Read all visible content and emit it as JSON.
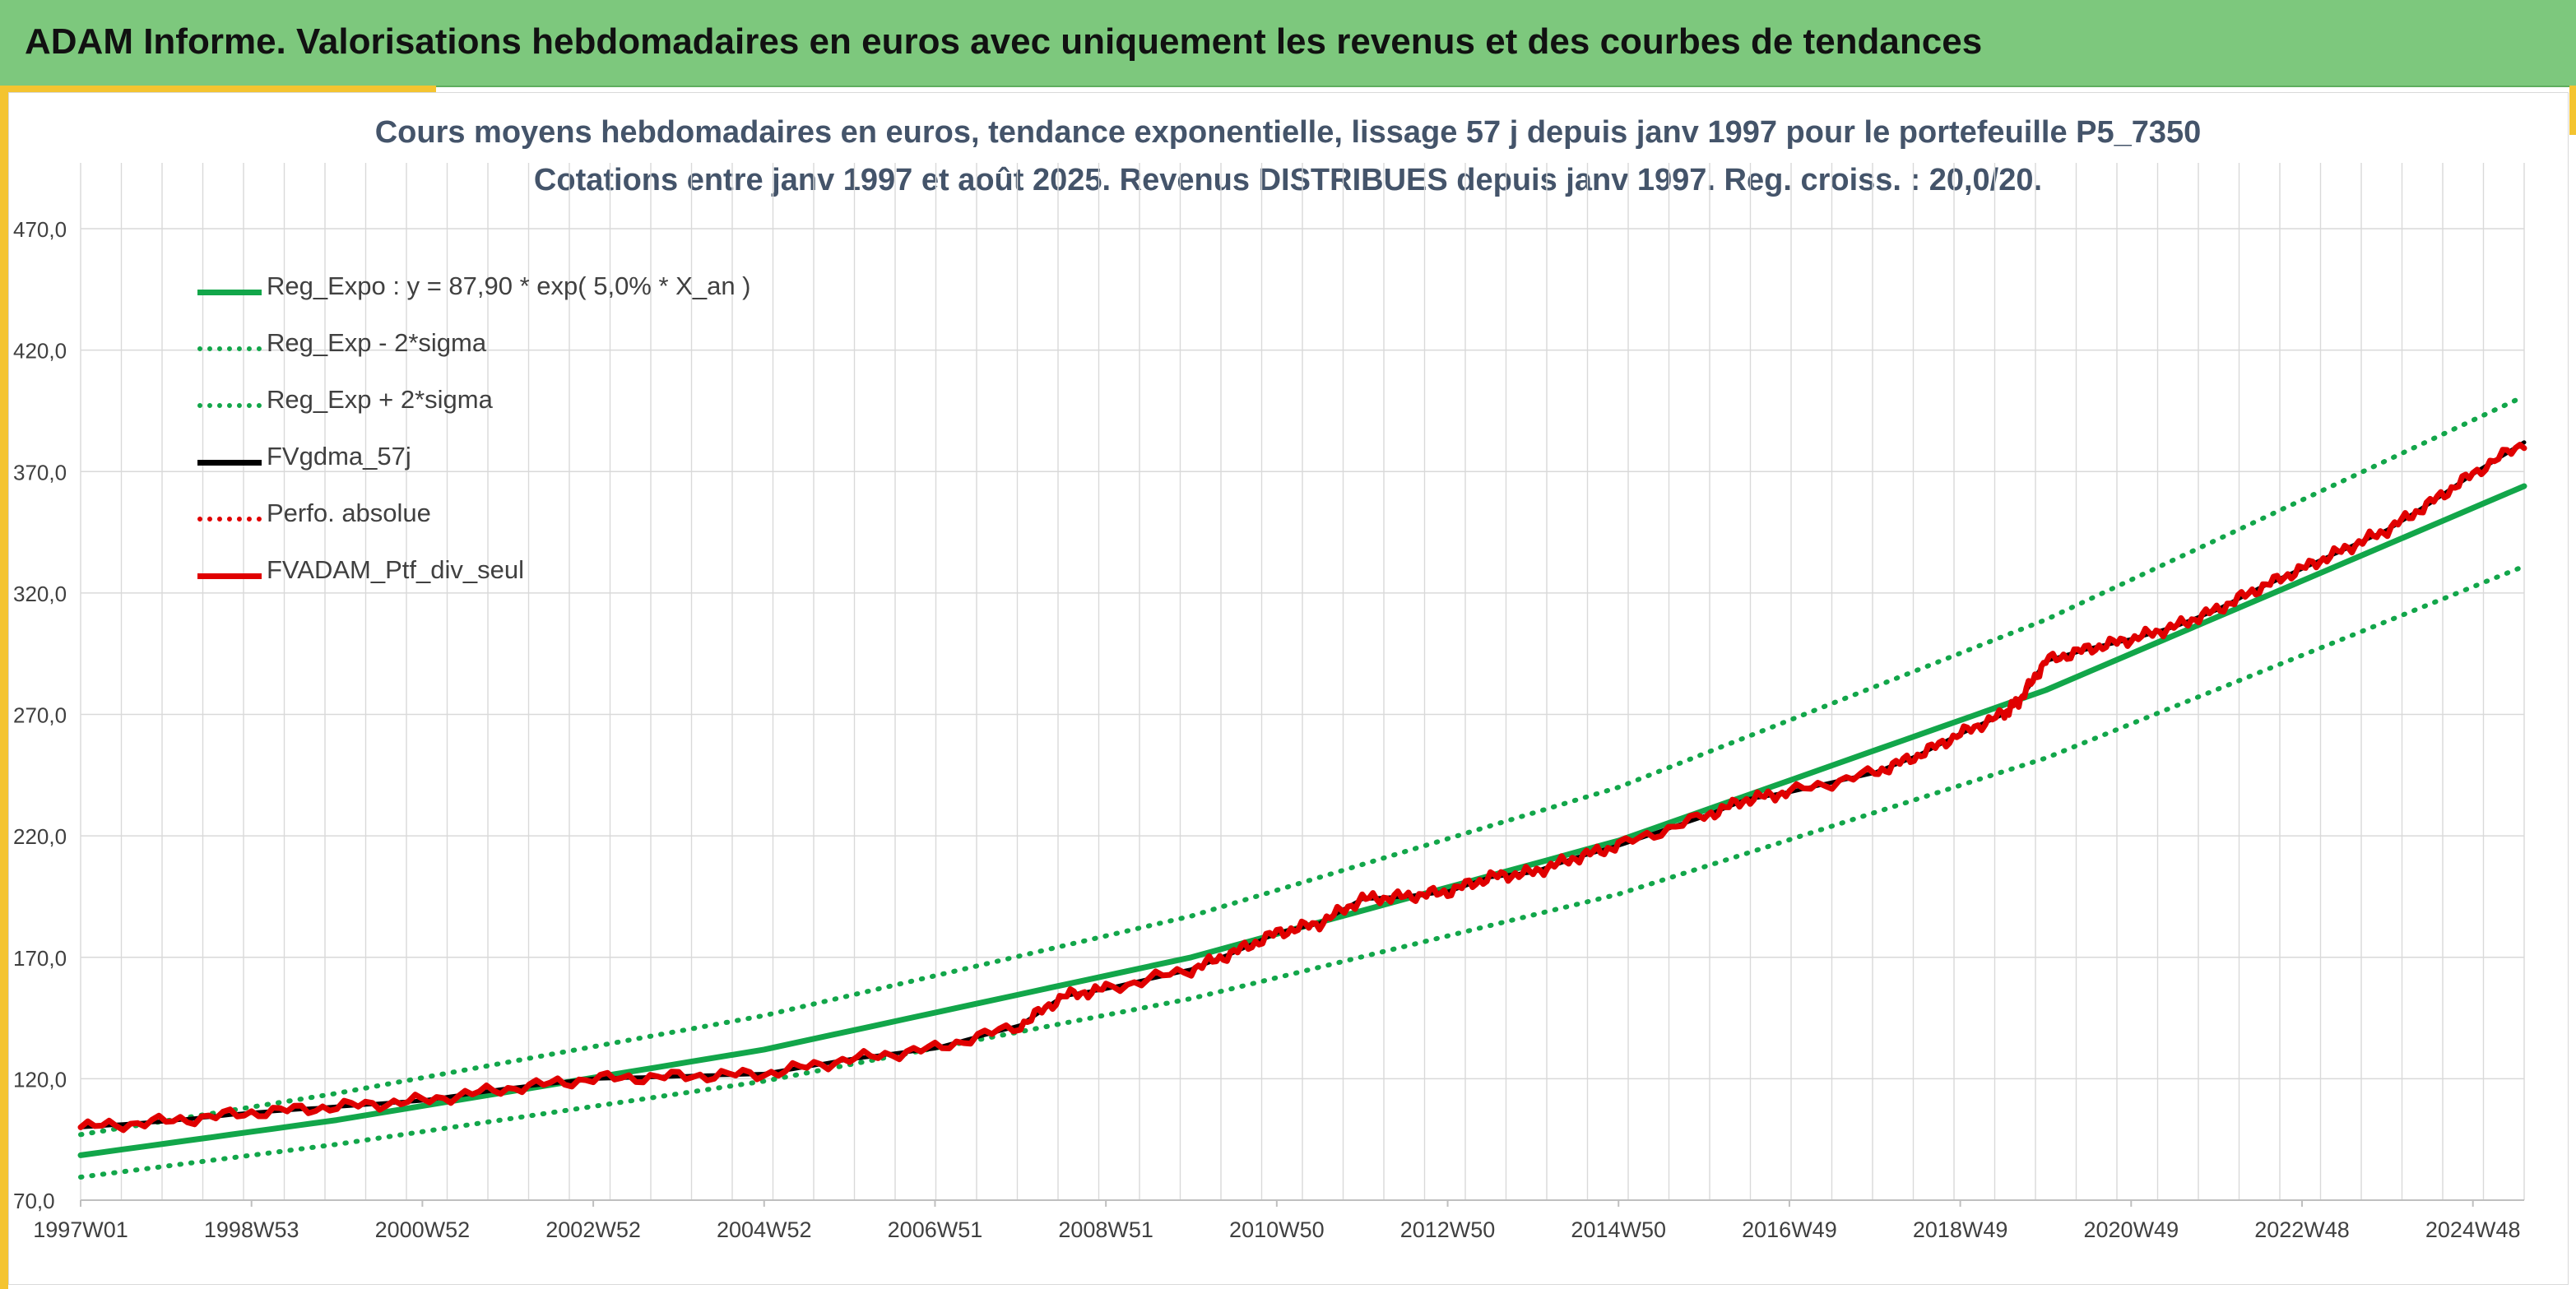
{
  "header": {
    "title": "ADAM Informe. Valorisations hebdomadaires en euros avec uniquement les revenus et des courbes de tendances"
  },
  "colors": {
    "header_bg": "#7dc87d",
    "accent": "#f4c430",
    "trend_green": "#12a64a",
    "fv_black": "#000000",
    "perf_red": "#e00000",
    "grid": "#d9d9d9",
    "axis_text": "#404040",
    "title_text": "#44546a"
  },
  "chart_data": {
    "type": "line",
    "title": "Cours moyens hebdomadaires en euros, tendance exponentielle, lissage 57 j depuis janv 1997 pour le portefeuille P5_7350",
    "subtitle": "Cotations entre janv 1997 et août 2025. Revenus DISTRIBUES depuis janv 1997. Reg. croiss. : 20,0/20.",
    "xlabel": "",
    "ylabel": "",
    "x_start": 1997.0,
    "x_end": 2025.6,
    "ylim": [
      70,
      470
    ],
    "y_ticks": [
      "70,0",
      "120,0",
      "170,0",
      "220,0",
      "270,0",
      "320,0",
      "370,0",
      "420,0",
      "470,0"
    ],
    "x_ticks": [
      "1997W01",
      "1998W53",
      "2000W52",
      "2002W52",
      "2004W52",
      "2006W51",
      "2008W51",
      "2010W50",
      "2012W50",
      "2014W50",
      "2016W49",
      "2018W49",
      "2020W49",
      "2022W48",
      "2024W48"
    ],
    "grid": true,
    "legend_position": "top-left",
    "series": [
      {
        "name": "Reg_Expo : y = 87,90 * exp( 5,0% *  X_an )",
        "color": "#12a64a",
        "style": "solid",
        "x": [
          1997.0,
          2000.0,
          2005.0,
          2010.0,
          2015.0,
          2020.0,
          2025.6
        ],
        "values": [
          88.5,
          103.0,
          132.0,
          170.0,
          218.0,
          280.0,
          364.0
        ]
      },
      {
        "name": "Reg_Exp - 2*sigma",
        "color": "#12a64a",
        "style": "dotted",
        "x": [
          1997.0,
          2000.0,
          2005.0,
          2010.0,
          2015.0,
          2020.0,
          2025.6
        ],
        "values": [
          79.5,
          93.0,
          119.0,
          153.0,
          196.0,
          252.0,
          331.0
        ]
      },
      {
        "name": "Reg_Exp + 2*sigma",
        "color": "#12a64a",
        "style": "dotted",
        "x": [
          1997.0,
          2000.0,
          2005.0,
          2010.0,
          2015.0,
          2020.0,
          2025.6
        ],
        "values": [
          97.0,
          114.0,
          146.0,
          187.0,
          240.0,
          309.0,
          401.0
        ]
      },
      {
        "name": "FVgdma_57j",
        "color": "#000000",
        "style": "solid",
        "x": [
          1997.0,
          1998.0,
          1999.0,
          2000.0,
          2001.0,
          2002.0,
          2003.0,
          2004.0,
          2005.0,
          2006.0,
          2007.0,
          2008.0,
          2008.5,
          2009.0,
          2010.0,
          2010.5,
          2011.0,
          2011.5,
          2012.0,
          2012.5,
          2013.0,
          2013.5,
          2014.0,
          2014.5,
          2015.0,
          2016.0,
          2016.5,
          2017.0,
          2018.0,
          2018.5,
          2019.0,
          2019.5,
          2019.7,
          2020.0,
          2020.5,
          2021.0,
          2021.5,
          2022.0,
          2022.5,
          2023.0,
          2023.5,
          2024.0,
          2024.5,
          2025.0,
          2025.6
        ],
        "values": [
          100.0,
          102.5,
          106.0,
          108.5,
          111.0,
          116.0,
          120.0,
          121.0,
          122.0,
          128.0,
          132.5,
          142.0,
          154.0,
          157.0,
          165.0,
          172.0,
          180.0,
          184.0,
          194.0,
          195.0,
          197.0,
          203.0,
          205.0,
          211.0,
          216.0,
          228.0,
          235.0,
          238.0,
          246.0,
          253.0,
          262.0,
          270.0,
          276.0,
          292.0,
          297.0,
          301.0,
          306.0,
          313.0,
          322.0,
          330.0,
          338.0,
          346.0,
          357.0,
          369.0,
          382.0
        ]
      },
      {
        "name": "Perfo. absolue",
        "color": "#e00000",
        "style": "dotted",
        "x": [],
        "values": []
      },
      {
        "name": "FVADAM_Ptf_div_seul",
        "color": "#e00000",
        "style": "solid",
        "x": [
          1997.0,
          1998.0,
          1999.0,
          2000.0,
          2001.0,
          2002.0,
          2003.0,
          2004.0,
          2005.0,
          2006.0,
          2007.0,
          2008.0,
          2008.5,
          2009.0,
          2010.0,
          2010.5,
          2011.0,
          2011.5,
          2012.0,
          2012.5,
          2013.0,
          2013.5,
          2014.0,
          2014.5,
          2015.0,
          2016.0,
          2016.5,
          2017.0,
          2018.0,
          2018.5,
          2019.0,
          2019.5,
          2019.7,
          2020.0,
          2020.5,
          2021.0,
          2021.5,
          2022.0,
          2022.5,
          2023.0,
          2023.5,
          2024.0,
          2024.5,
          2025.0,
          2025.6
        ],
        "values": [
          100.0,
          102.5,
          106.0,
          108.5,
          111.0,
          116.0,
          120.0,
          121.0,
          122.0,
          128.0,
          132.5,
          142.0,
          154.0,
          157.0,
          165.0,
          172.0,
          180.0,
          184.0,
          194.0,
          195.0,
          197.0,
          203.0,
          205.0,
          211.0,
          216.0,
          228.0,
          235.0,
          238.0,
          246.0,
          253.0,
          262.0,
          270.0,
          276.0,
          292.0,
          297.0,
          301.0,
          306.0,
          313.0,
          322.0,
          330.0,
          338.0,
          346.0,
          357.0,
          369.0,
          382.0
        ]
      }
    ]
  }
}
